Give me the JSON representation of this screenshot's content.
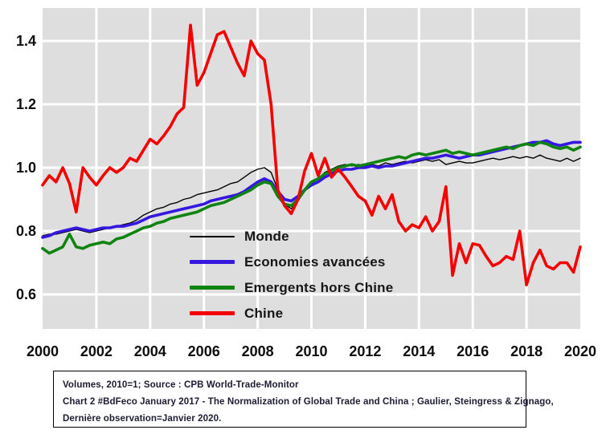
{
  "chart": {
    "plot_bg": "#dedede",
    "grid_color": "#ffffff",
    "tick_color": "#0e0e0e"
  },
  "legend": {
    "items": [
      {
        "label": "Monde",
        "color": "#000000",
        "thickness": 2
      },
      {
        "label": "Economies avancées",
        "color": "#3418e0",
        "thickness": 5
      },
      {
        "label": "Emergents hors Chine",
        "color": "#118311",
        "thickness": 5
      },
      {
        "label": "Chine",
        "color": "#f40000",
        "thickness": 5
      }
    ]
  },
  "caption": {
    "lines": [
      "Volumes, 2010=1; Source : CPB World-Trade-Monitor",
      "Chart 2 #BdFeco January 2017 - The Normalization of Global Trade and China ; Gaulier, Steingress & Zignago,",
      "Dernière observation=Janvier 2020."
    ]
  },
  "chart_data": {
    "type": "line",
    "title": "",
    "xlabel": "",
    "ylabel": "",
    "grid": true,
    "legend_position": "inside-center-left",
    "xlim": [
      2000,
      2020
    ],
    "ylim": [
      0.491,
      1.504
    ],
    "x_ticks": [
      2000,
      2002,
      2004,
      2006,
      2008,
      2010,
      2012,
      2014,
      2016,
      2018,
      2020
    ],
    "x_tick_labels": [
      "2000",
      "2002",
      "2004",
      "2006",
      "2008",
      "2010",
      "2012",
      "2014",
      "2016",
      "2018",
      "2020"
    ],
    "y_ticks": [
      0.6,
      0.8,
      1.0,
      1.2,
      1.4
    ],
    "y_tick_labels": [
      "0.6",
      "0.8",
      "1.0",
      "1.2",
      "1.4"
    ],
    "x": [
      2000,
      2000.25,
      2000.5,
      2000.75,
      2001,
      2001.25,
      2001.5,
      2001.75,
      2002,
      2002.25,
      2002.5,
      2002.75,
      2003,
      2003.25,
      2003.5,
      2003.75,
      2004,
      2004.25,
      2004.5,
      2004.75,
      2005,
      2005.25,
      2005.5,
      2005.75,
      2006,
      2006.25,
      2006.5,
      2006.75,
      2007,
      2007.25,
      2007.5,
      2007.75,
      2008,
      2008.25,
      2008.5,
      2008.75,
      2009,
      2009.25,
      2009.5,
      2009.75,
      2010,
      2010.25,
      2010.5,
      2010.75,
      2011,
      2011.25,
      2011.5,
      2011.75,
      2012,
      2012.25,
      2012.5,
      2012.75,
      2013,
      2013.25,
      2013.5,
      2013.75,
      2014,
      2014.25,
      2014.5,
      2014.75,
      2015,
      2015.25,
      2015.5,
      2015.75,
      2016,
      2016.25,
      2016.5,
      2016.75,
      2017,
      2017.25,
      2017.5,
      2017.75,
      2018,
      2018.25,
      2018.5,
      2018.75,
      2019,
      2019.25,
      2019.5,
      2019.75,
      2020
    ],
    "series": [
      {
        "name": "Monde",
        "key": "monde",
        "color": "#000000",
        "width": 1.4,
        "values": [
          0.785,
          0.79,
          0.79,
          0.795,
          0.8,
          0.805,
          0.8,
          0.795,
          0.8,
          0.805,
          0.81,
          0.815,
          0.82,
          0.825,
          0.835,
          0.85,
          0.86,
          0.87,
          0.875,
          0.885,
          0.89,
          0.9,
          0.905,
          0.915,
          0.92,
          0.925,
          0.93,
          0.94,
          0.95,
          0.955,
          0.97,
          0.985,
          0.995,
          1.0,
          0.985,
          0.93,
          0.885,
          0.87,
          0.895,
          0.925,
          0.95,
          0.965,
          0.985,
          0.995,
          1.005,
          1.01,
          1.005,
          1.01,
          1.005,
          1.01,
          1.005,
          1.015,
          1.01,
          1.015,
          1.02,
          1.015,
          1.02,
          1.025,
          1.02,
          1.025,
          1.01,
          1.015,
          1.02,
          1.015,
          1.015,
          1.02,
          1.025,
          1.03,
          1.025,
          1.03,
          1.035,
          1.03,
          1.035,
          1.03,
          1.04,
          1.03,
          1.025,
          1.02,
          1.03,
          1.02,
          1.03
        ]
      },
      {
        "name": "Economies avancées",
        "key": "economies-avancees",
        "color": "#3418e0",
        "width": 3.6,
        "values": [
          0.78,
          0.785,
          0.795,
          0.8,
          0.805,
          0.81,
          0.805,
          0.8,
          0.805,
          0.81,
          0.81,
          0.815,
          0.815,
          0.82,
          0.825,
          0.835,
          0.845,
          0.85,
          0.855,
          0.86,
          0.865,
          0.87,
          0.875,
          0.88,
          0.885,
          0.895,
          0.9,
          0.905,
          0.91,
          0.915,
          0.925,
          0.94,
          0.955,
          0.965,
          0.955,
          0.925,
          0.9,
          0.895,
          0.91,
          0.93,
          0.945,
          0.955,
          0.97,
          0.98,
          0.99,
          0.995,
          0.995,
          1.0,
          1.0,
          1.005,
          1.0,
          1.005,
          1.005,
          1.01,
          1.015,
          1.02,
          1.025,
          1.03,
          1.03,
          1.035,
          1.04,
          1.035,
          1.03,
          1.035,
          1.04,
          1.04,
          1.045,
          1.05,
          1.055,
          1.06,
          1.065,
          1.07,
          1.075,
          1.08,
          1.08,
          1.085,
          1.075,
          1.07,
          1.075,
          1.08,
          1.08
        ]
      },
      {
        "name": "Emergents hors Chine",
        "key": "emergents-hors-chine",
        "color": "#118311",
        "width": 3.6,
        "values": [
          0.745,
          0.73,
          0.74,
          0.75,
          0.79,
          0.75,
          0.745,
          0.755,
          0.76,
          0.765,
          0.76,
          0.775,
          0.78,
          0.79,
          0.8,
          0.81,
          0.815,
          0.825,
          0.83,
          0.84,
          0.845,
          0.85,
          0.855,
          0.86,
          0.87,
          0.88,
          0.885,
          0.89,
          0.9,
          0.91,
          0.92,
          0.93,
          0.945,
          0.955,
          0.95,
          0.91,
          0.885,
          0.88,
          0.9,
          0.93,
          0.955,
          0.965,
          0.98,
          0.99,
          1.0,
          1.005,
          1.01,
          1.005,
          1.01,
          1.015,
          1.02,
          1.025,
          1.03,
          1.035,
          1.03,
          1.04,
          1.045,
          1.04,
          1.045,
          1.05,
          1.055,
          1.045,
          1.05,
          1.045,
          1.04,
          1.045,
          1.05,
          1.055,
          1.06,
          1.065,
          1.06,
          1.07,
          1.075,
          1.07,
          1.08,
          1.075,
          1.065,
          1.06,
          1.065,
          1.055,
          1.065
        ]
      },
      {
        "name": "Chine",
        "key": "chine",
        "color": "#f40000",
        "width": 3.6,
        "values": [
          0.945,
          0.975,
          0.955,
          1.0,
          0.95,
          0.86,
          1.0,
          0.97,
          0.945,
          0.975,
          1.0,
          0.985,
          1.0,
          1.03,
          1.02,
          1.055,
          1.09,
          1.075,
          1.1,
          1.13,
          1.17,
          1.19,
          1.45,
          1.26,
          1.3,
          1.36,
          1.42,
          1.43,
          1.38,
          1.33,
          1.29,
          1.4,
          1.36,
          1.34,
          1.2,
          0.93,
          0.88,
          0.855,
          0.9,
          0.99,
          1.045,
          0.975,
          1.03,
          0.97,
          0.995,
          0.97,
          0.94,
          0.91,
          0.895,
          0.85,
          0.91,
          0.87,
          0.915,
          0.83,
          0.8,
          0.82,
          0.81,
          0.845,
          0.8,
          0.83,
          0.94,
          0.66,
          0.76,
          0.7,
          0.76,
          0.755,
          0.72,
          0.69,
          0.7,
          0.72,
          0.71,
          0.8,
          0.63,
          0.7,
          0.74,
          0.69,
          0.68,
          0.7,
          0.7,
          0.67,
          0.75
        ]
      }
    ]
  }
}
